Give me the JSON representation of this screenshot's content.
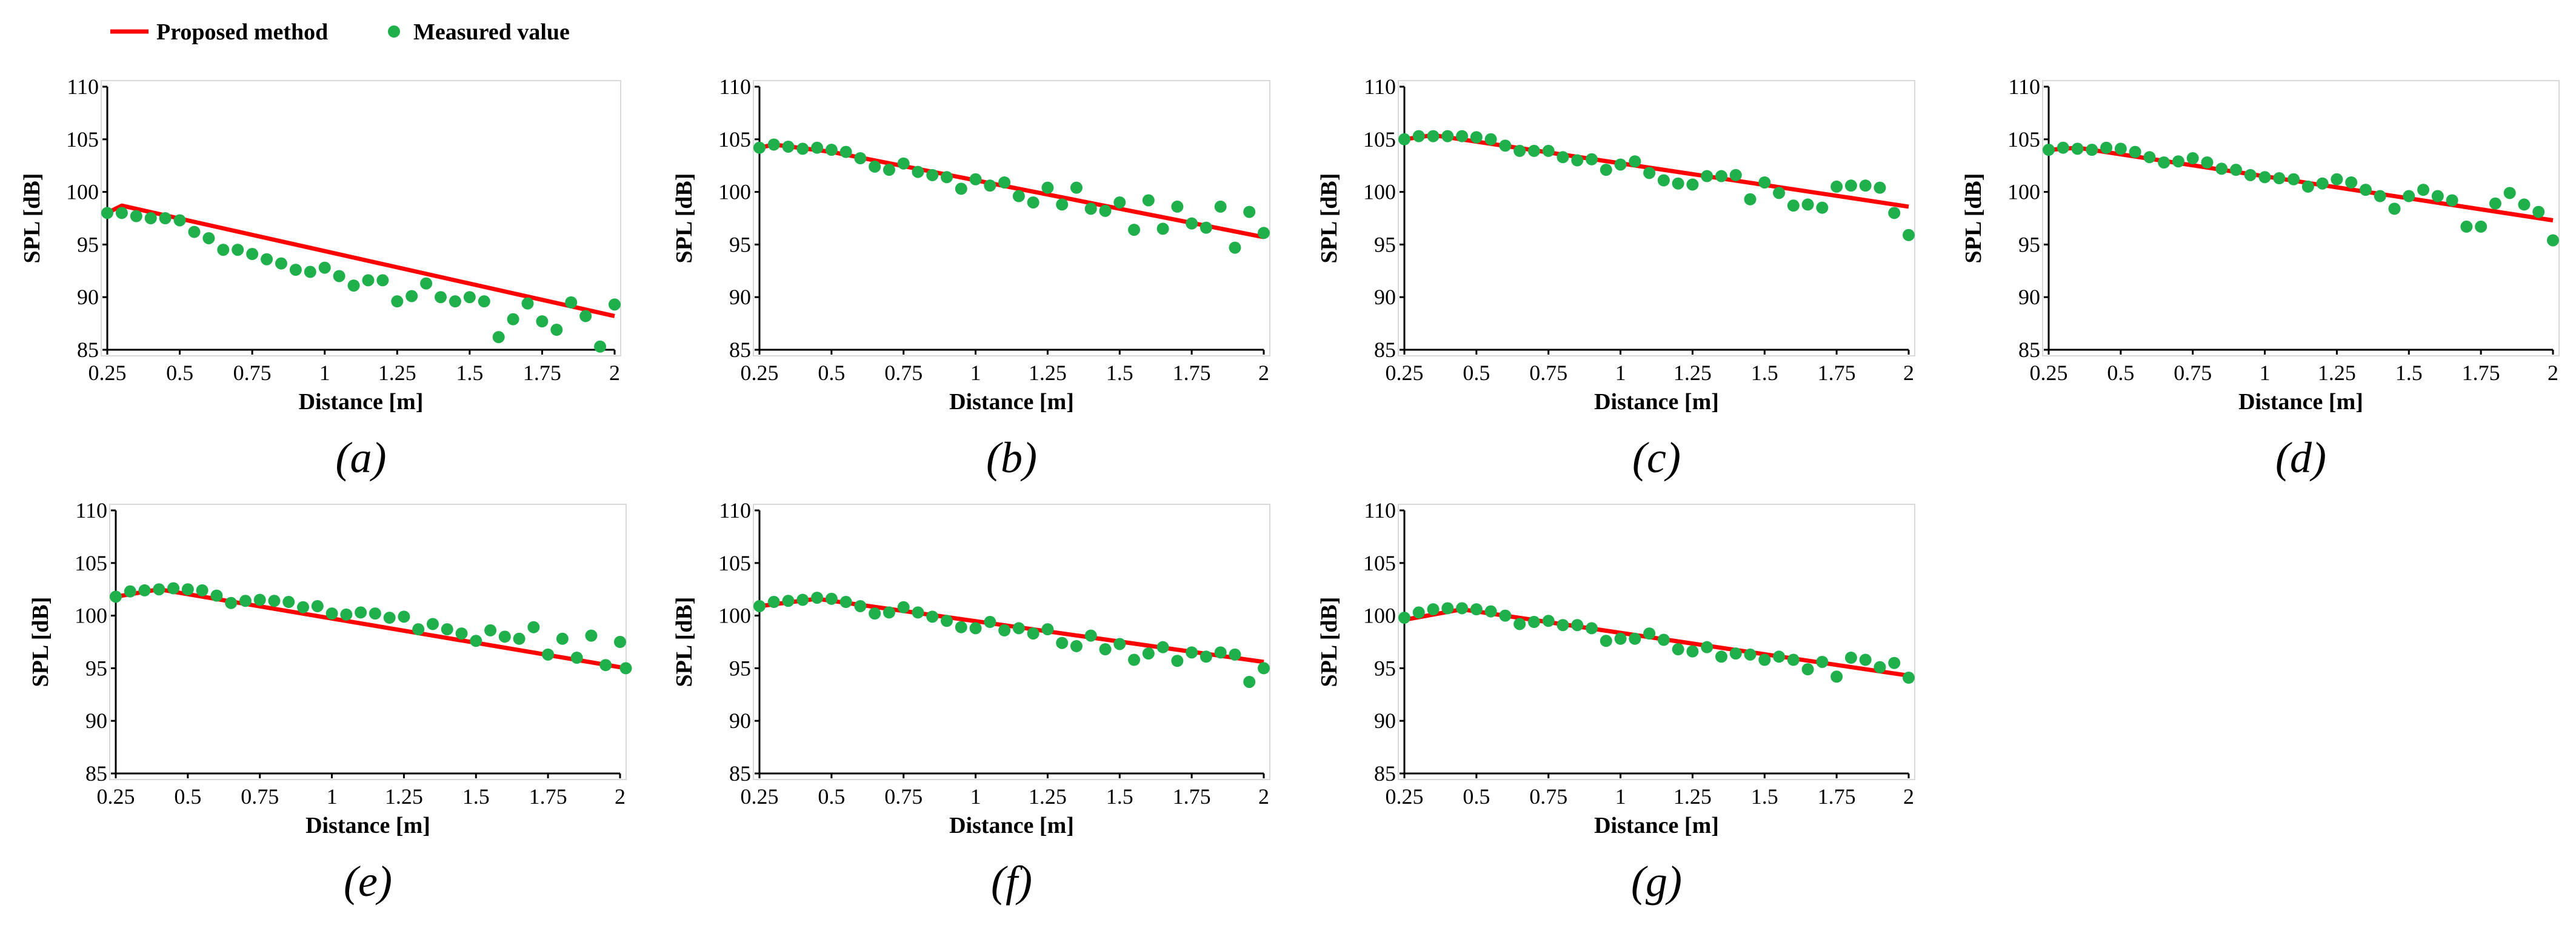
{
  "legend": {
    "line_label": "Proposed method",
    "marker_label": "Measured value"
  },
  "colors": {
    "line": "#ff0000",
    "marker": "#1fb04b",
    "axis": "#000000",
    "frame": "#d9d9d9"
  },
  "chart_data": [
    {
      "type": "line+scatter",
      "panel": "(a)",
      "xlabel": "Distance [m]",
      "ylabel": "SPL [dB]",
      "xlim": [
        0.25,
        2
      ],
      "ylim": [
        85,
        110
      ],
      "xticks": [
        "0.25",
        "0.5",
        "0.75",
        "1",
        "1.25",
        "1.5",
        "1.75",
        "2"
      ],
      "yticks": [
        "85",
        "90",
        "95",
        "100",
        "105",
        "110"
      ],
      "proposed": [
        [
          0.25,
          98
        ],
        [
          0.3,
          98.7
        ],
        [
          2,
          88.2
        ]
      ],
      "measured": [
        [
          0.25,
          98
        ],
        [
          0.3,
          98
        ],
        [
          0.35,
          97.7
        ],
        [
          0.4,
          97.5
        ],
        [
          0.45,
          97.5
        ],
        [
          0.5,
          97.3
        ],
        [
          0.55,
          96.2
        ],
        [
          0.6,
          95.6
        ],
        [
          0.65,
          94.5
        ],
        [
          0.7,
          94.5
        ],
        [
          0.75,
          94.1
        ],
        [
          0.8,
          93.6
        ],
        [
          0.85,
          93.2
        ],
        [
          0.9,
          92.6
        ],
        [
          0.95,
          92.4
        ],
        [
          1,
          92.8
        ],
        [
          1.05,
          92
        ],
        [
          1.1,
          91.1
        ],
        [
          1.15,
          91.6
        ],
        [
          1.2,
          91.6
        ],
        [
          1.25,
          89.6
        ],
        [
          1.3,
          90.1
        ],
        [
          1.35,
          91.3
        ],
        [
          1.4,
          90
        ],
        [
          1.45,
          89.6
        ],
        [
          1.5,
          90
        ],
        [
          1.55,
          89.6
        ],
        [
          1.6,
          86.2
        ],
        [
          1.65,
          87.9
        ],
        [
          1.7,
          89.4
        ],
        [
          1.75,
          87.7
        ],
        [
          1.8,
          86.9
        ],
        [
          1.85,
          89.5
        ],
        [
          1.9,
          88.2
        ],
        [
          1.95,
          85.3
        ],
        [
          2,
          89.3
        ]
      ]
    },
    {
      "type": "line+scatter",
      "panel": "(b)",
      "xlabel": "Distance [m]",
      "ylabel": "SPL [dB]",
      "xlim": [
        0.25,
        2
      ],
      "ylim": [
        85,
        110
      ],
      "xticks": [
        "0.25",
        "0.5",
        "0.75",
        "1",
        "1.25",
        "1.5",
        "1.75",
        "2"
      ],
      "yticks": [
        "85",
        "90",
        "95",
        "100",
        "105",
        "110"
      ],
      "proposed": [
        [
          0.25,
          104.2
        ],
        [
          0.3,
          104.5
        ],
        [
          0.5,
          103.8
        ],
        [
          2,
          95.7
        ]
      ],
      "measured": [
        [
          0.25,
          104.2
        ],
        [
          0.3,
          104.5
        ],
        [
          0.35,
          104.3
        ],
        [
          0.4,
          104.1
        ],
        [
          0.45,
          104.2
        ],
        [
          0.5,
          104
        ],
        [
          0.55,
          103.8
        ],
        [
          0.6,
          103.2
        ],
        [
          0.65,
          102.4
        ],
        [
          0.7,
          102.1
        ],
        [
          0.75,
          102.7
        ],
        [
          0.8,
          101.9
        ],
        [
          0.85,
          101.6
        ],
        [
          0.9,
          101.4
        ],
        [
          0.95,
          100.3
        ],
        [
          1,
          101.2
        ],
        [
          1.05,
          100.6
        ],
        [
          1.1,
          100.9
        ],
        [
          1.15,
          99.6
        ],
        [
          1.2,
          99
        ],
        [
          1.25,
          100.4
        ],
        [
          1.3,
          98.8
        ],
        [
          1.35,
          100.4
        ],
        [
          1.4,
          98.4
        ],
        [
          1.45,
          98.2
        ],
        [
          1.5,
          99
        ],
        [
          1.55,
          96.4
        ],
        [
          1.6,
          99.2
        ],
        [
          1.65,
          96.5
        ],
        [
          1.7,
          98.6
        ],
        [
          1.75,
          97
        ],
        [
          1.8,
          96.6
        ],
        [
          1.85,
          98.6
        ],
        [
          1.9,
          94.7
        ],
        [
          1.95,
          98.1
        ],
        [
          2,
          96.1
        ]
      ]
    },
    {
      "type": "line+scatter",
      "panel": "(c)",
      "xlabel": "Distance [m]",
      "ylabel": "SPL [dB]",
      "xlim": [
        0.25,
        2
      ],
      "ylim": [
        85,
        110
      ],
      "xticks": [
        "0.25",
        "0.5",
        "0.75",
        "1",
        "1.25",
        "1.5",
        "1.75",
        "2"
      ],
      "yticks": [
        "85",
        "90",
        "95",
        "100",
        "105",
        "110"
      ],
      "proposed": [
        [
          0.25,
          105
        ],
        [
          0.35,
          105.4
        ],
        [
          2,
          98.6
        ]
      ],
      "measured": [
        [
          0.25,
          105
        ],
        [
          0.3,
          105.3
        ],
        [
          0.35,
          105.3
        ],
        [
          0.4,
          105.3
        ],
        [
          0.45,
          105.3
        ],
        [
          0.5,
          105.2
        ],
        [
          0.55,
          105
        ],
        [
          0.6,
          104.4
        ],
        [
          0.65,
          103.9
        ],
        [
          0.7,
          103.9
        ],
        [
          0.75,
          103.9
        ],
        [
          0.8,
          103.3
        ],
        [
          0.85,
          103
        ],
        [
          0.9,
          103.1
        ],
        [
          0.95,
          102.1
        ],
        [
          1,
          102.6
        ],
        [
          1.05,
          102.9
        ],
        [
          1.1,
          101.8
        ],
        [
          1.15,
          101.1
        ],
        [
          1.2,
          100.8
        ],
        [
          1.25,
          100.7
        ],
        [
          1.3,
          101.5
        ],
        [
          1.35,
          101.5
        ],
        [
          1.4,
          101.6
        ],
        [
          1.45,
          99.3
        ],
        [
          1.5,
          100.9
        ],
        [
          1.55,
          99.9
        ],
        [
          1.6,
          98.7
        ],
        [
          1.65,
          98.8
        ],
        [
          1.7,
          98.5
        ],
        [
          1.75,
          100.5
        ],
        [
          1.8,
          100.6
        ],
        [
          1.85,
          100.6
        ],
        [
          1.9,
          100.4
        ],
        [
          1.95,
          98
        ],
        [
          2,
          95.9
        ]
      ]
    },
    {
      "type": "line+scatter",
      "panel": "(d)",
      "xlabel": "Distance [m]",
      "ylabel": "SPL [dB]",
      "xlim": [
        0.25,
        2
      ],
      "ylim": [
        85,
        110
      ],
      "xticks": [
        "0.25",
        "0.5",
        "0.75",
        "1",
        "1.25",
        "1.5",
        "1.75",
        "2"
      ],
      "yticks": [
        "85",
        "90",
        "95",
        "100",
        "105",
        "110"
      ],
      "proposed": [
        [
          0.25,
          104
        ],
        [
          0.35,
          104.2
        ],
        [
          2,
          97.3
        ]
      ],
      "measured": [
        [
          0.25,
          104
        ],
        [
          0.3,
          104.2
        ],
        [
          0.35,
          104.1
        ],
        [
          0.4,
          104
        ],
        [
          0.45,
          104.2
        ],
        [
          0.5,
          104.1
        ],
        [
          0.55,
          103.8
        ],
        [
          0.6,
          103.3
        ],
        [
          0.65,
          102.8
        ],
        [
          0.7,
          102.9
        ],
        [
          0.75,
          103.2
        ],
        [
          0.8,
          102.8
        ],
        [
          0.85,
          102.2
        ],
        [
          0.9,
          102.1
        ],
        [
          0.95,
          101.6
        ],
        [
          1,
          101.4
        ],
        [
          1.05,
          101.3
        ],
        [
          1.1,
          101.2
        ],
        [
          1.15,
          100.5
        ],
        [
          1.2,
          100.8
        ],
        [
          1.25,
          101.2
        ],
        [
          1.3,
          100.9
        ],
        [
          1.35,
          100.2
        ],
        [
          1.4,
          99.6
        ],
        [
          1.45,
          98.4
        ],
        [
          1.5,
          99.6
        ],
        [
          1.55,
          100.2
        ],
        [
          1.6,
          99.6
        ],
        [
          1.65,
          99.2
        ],
        [
          1.7,
          96.7
        ],
        [
          1.75,
          96.7
        ],
        [
          1.8,
          98.9
        ],
        [
          1.85,
          99.9
        ],
        [
          1.9,
          98.8
        ],
        [
          1.95,
          98.1
        ],
        [
          2,
          95.4
        ]
      ]
    },
    {
      "type": "line+scatter",
      "panel": "(e)",
      "xlabel": "Distance [m]",
      "ylabel": "SPL [dB]",
      "xlim": [
        0.25,
        2
      ],
      "ylim": [
        85,
        110
      ],
      "xticks": [
        "0.25",
        "0.5",
        "0.75",
        "1",
        "1.25",
        "1.5",
        "1.75",
        "2"
      ],
      "yticks": [
        "85",
        "90",
        "95",
        "100",
        "105",
        "110"
      ],
      "proposed": [
        [
          0.25,
          101.8
        ],
        [
          0.4,
          102.5
        ],
        [
          2,
          95.1
        ]
      ],
      "measured": [
        [
          0.25,
          101.8
        ],
        [
          0.3,
          102.3
        ],
        [
          0.35,
          102.4
        ],
        [
          0.4,
          102.5
        ],
        [
          0.45,
          102.6
        ],
        [
          0.5,
          102.5
        ],
        [
          0.55,
          102.4
        ],
        [
          0.6,
          101.9
        ],
        [
          0.65,
          101.2
        ],
        [
          0.7,
          101.4
        ],
        [
          0.75,
          101.5
        ],
        [
          0.8,
          101.4
        ],
        [
          0.85,
          101.3
        ],
        [
          0.9,
          100.8
        ],
        [
          0.95,
          100.9
        ],
        [
          1,
          100.2
        ],
        [
          1.05,
          100.1
        ],
        [
          1.1,
          100.3
        ],
        [
          1.15,
          100.2
        ],
        [
          1.2,
          99.8
        ],
        [
          1.25,
          99.9
        ],
        [
          1.3,
          98.7
        ],
        [
          1.35,
          99.2
        ],
        [
          1.4,
          98.7
        ],
        [
          1.45,
          98.3
        ],
        [
          1.5,
          97.6
        ],
        [
          1.55,
          98.6
        ],
        [
          1.6,
          98
        ],
        [
          1.65,
          97.8
        ],
        [
          1.7,
          98.9
        ],
        [
          1.75,
          96.3
        ],
        [
          1.8,
          97.8
        ],
        [
          1.85,
          96
        ],
        [
          1.9,
          98.1
        ],
        [
          1.95,
          95.3
        ],
        [
          2,
          97.5
        ],
        [
          2.02,
          95
        ]
      ]
    },
    {
      "type": "line+scatter",
      "panel": "(f)",
      "xlabel": "Distance [m]",
      "ylabel": "SPL [dB]",
      "xlim": [
        0.25,
        2
      ],
      "ylim": [
        85,
        110
      ],
      "xticks": [
        "0.25",
        "0.5",
        "0.75",
        "1",
        "1.25",
        "1.5",
        "1.75",
        "2"
      ],
      "yticks": [
        "85",
        "90",
        "95",
        "100",
        "105",
        "110"
      ],
      "proposed": [
        [
          0.25,
          100.9
        ],
        [
          0.45,
          101.6
        ],
        [
          2,
          95.6
        ]
      ],
      "measured": [
        [
          0.25,
          100.9
        ],
        [
          0.3,
          101.3
        ],
        [
          0.35,
          101.4
        ],
        [
          0.4,
          101.5
        ],
        [
          0.45,
          101.7
        ],
        [
          0.5,
          101.6
        ],
        [
          0.55,
          101.3
        ],
        [
          0.6,
          100.9
        ],
        [
          0.65,
          100.2
        ],
        [
          0.7,
          100.3
        ],
        [
          0.75,
          100.8
        ],
        [
          0.8,
          100.3
        ],
        [
          0.85,
          99.9
        ],
        [
          0.9,
          99.5
        ],
        [
          0.95,
          98.9
        ],
        [
          1,
          98.8
        ],
        [
          1.05,
          99.4
        ],
        [
          1.1,
          98.6
        ],
        [
          1.15,
          98.8
        ],
        [
          1.2,
          98.3
        ],
        [
          1.25,
          98.7
        ],
        [
          1.3,
          97.4
        ],
        [
          1.35,
          97.1
        ],
        [
          1.4,
          98.1
        ],
        [
          1.45,
          96.8
        ],
        [
          1.5,
          97.3
        ],
        [
          1.55,
          95.8
        ],
        [
          1.6,
          96.4
        ],
        [
          1.65,
          97
        ],
        [
          1.7,
          95.7
        ],
        [
          1.75,
          96.5
        ],
        [
          1.8,
          96.1
        ],
        [
          1.85,
          96.5
        ],
        [
          1.9,
          96.3
        ],
        [
          1.95,
          93.7
        ],
        [
          2,
          95
        ]
      ]
    },
    {
      "type": "line+scatter",
      "panel": "(g)",
      "xlabel": "Distance [m]",
      "ylabel": "SPL [dB]",
      "xlim": [
        0.25,
        2
      ],
      "ylim": [
        85,
        110
      ],
      "xticks": [
        "0.25",
        "0.5",
        "0.75",
        "1",
        "1.25",
        "1.5",
        "1.75",
        "2"
      ],
      "yticks": [
        "85",
        "90",
        "95",
        "100",
        "105",
        "110"
      ],
      "proposed": [
        [
          0.25,
          99.6
        ],
        [
          0.45,
          100.6
        ],
        [
          2,
          94.3
        ]
      ],
      "measured": [
        [
          0.25,
          99.8
        ],
        [
          0.3,
          100.3
        ],
        [
          0.35,
          100.6
        ],
        [
          0.4,
          100.7
        ],
        [
          0.45,
          100.7
        ],
        [
          0.5,
          100.6
        ],
        [
          0.55,
          100.4
        ],
        [
          0.6,
          100
        ],
        [
          0.65,
          99.2
        ],
        [
          0.7,
          99.4
        ],
        [
          0.75,
          99.5
        ],
        [
          0.8,
          99.1
        ],
        [
          0.85,
          99.1
        ],
        [
          0.9,
          98.8
        ],
        [
          0.95,
          97.6
        ],
        [
          1,
          97.8
        ],
        [
          1.05,
          97.8
        ],
        [
          1.1,
          98.3
        ],
        [
          1.15,
          97.7
        ],
        [
          1.2,
          96.8
        ],
        [
          1.25,
          96.6
        ],
        [
          1.3,
          97
        ],
        [
          1.35,
          96.1
        ],
        [
          1.4,
          96.4
        ],
        [
          1.45,
          96.3
        ],
        [
          1.5,
          95.8
        ],
        [
          1.55,
          96.1
        ],
        [
          1.6,
          95.8
        ],
        [
          1.65,
          94.9
        ],
        [
          1.7,
          95.6
        ],
        [
          1.75,
          94.2
        ],
        [
          1.8,
          96
        ],
        [
          1.85,
          95.8
        ],
        [
          1.9,
          95.1
        ],
        [
          1.95,
          95.5
        ],
        [
          2,
          94.1
        ]
      ]
    }
  ]
}
